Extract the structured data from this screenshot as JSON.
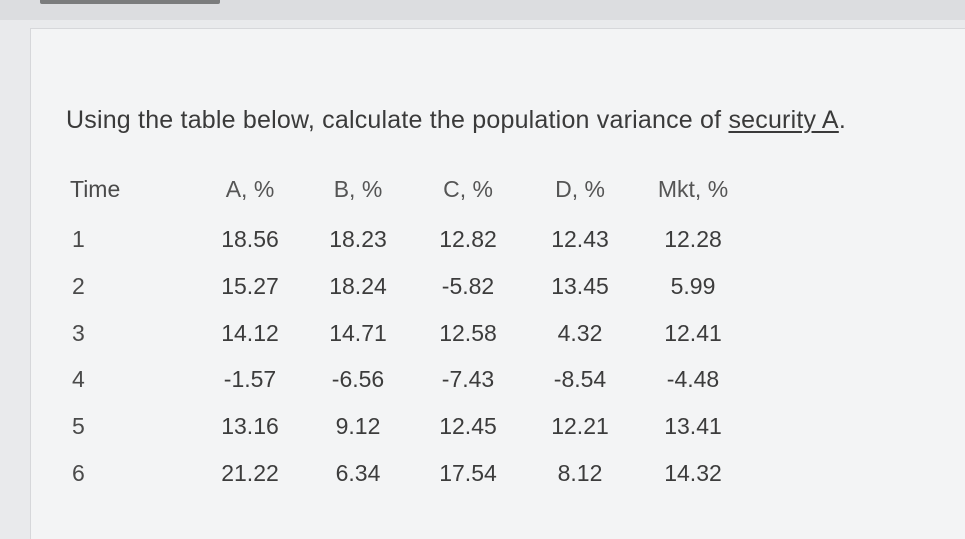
{
  "question": {
    "prefix": "Using the table below, calculate the population variance of ",
    "link": "security A",
    "suffix": "."
  },
  "table": {
    "headers": [
      "Time",
      "A, %",
      "B, %",
      "C, %",
      "D, %",
      "Mkt, %"
    ],
    "rows": [
      [
        "1",
        "18.56",
        "18.23",
        "12.82",
        "12.43",
        "12.28"
      ],
      [
        "2",
        "15.27",
        "18.24",
        "-5.82",
        "13.45",
        "5.99"
      ],
      [
        "3",
        "14.12",
        "14.71",
        "12.58",
        "4.32",
        "12.41"
      ],
      [
        "4",
        "-1.57",
        "-6.56",
        "-7.43",
        "-8.54",
        "-4.48"
      ],
      [
        "5",
        "13.16",
        "9.12",
        "12.45",
        "12.21",
        "13.41"
      ],
      [
        "6",
        "21.22",
        "6.34",
        "17.54",
        "8.12",
        "14.32"
      ]
    ]
  }
}
